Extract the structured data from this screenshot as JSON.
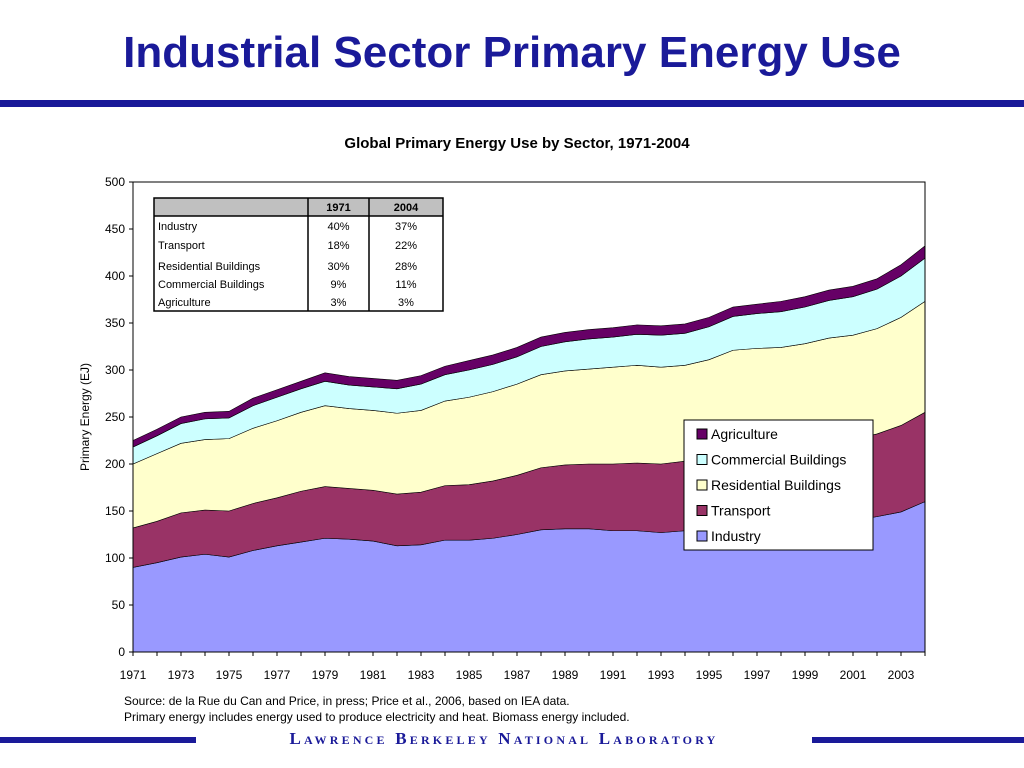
{
  "slide": {
    "title": "Industrial Sector Primary Energy Use",
    "footer": "Lawrence Berkeley National Laboratory",
    "source_line1": "Source: de la Rue du Can and Price, in press; Price et al., 2006, based on IEA data.",
    "source_line2": "Primary energy includes energy used to produce electricity and heat. Biomass energy included."
  },
  "chart_data": {
    "type": "area",
    "stacked": true,
    "title": "Global Primary Energy Use by Sector, 1971-2004",
    "xlabel": "",
    "ylabel": "Primary Energy (EJ)",
    "ylim": [
      0,
      500
    ],
    "yticks": [
      0,
      50,
      100,
      150,
      200,
      250,
      300,
      350,
      400,
      450,
      500
    ],
    "xticks": [
      1971,
      1973,
      1975,
      1977,
      1979,
      1981,
      1983,
      1985,
      1987,
      1989,
      1991,
      1993,
      1995,
      1997,
      1999,
      2001,
      2003
    ],
    "grid": false,
    "legend": "right",
    "x": [
      1971,
      1972,
      1973,
      1974,
      1975,
      1976,
      1977,
      1978,
      1979,
      1980,
      1981,
      1982,
      1983,
      1984,
      1985,
      1986,
      1987,
      1988,
      1989,
      1990,
      1991,
      1992,
      1993,
      1994,
      1995,
      1996,
      1997,
      1998,
      1999,
      2000,
      2001,
      2002,
      2003,
      2004
    ],
    "series": [
      {
        "name": "Industry",
        "color": "#9999ff",
        "values": [
          90,
          95,
          101,
          104,
          101,
          108,
          113,
          117,
          121,
          120,
          118,
          113,
          114,
          119,
          119,
          121,
          125,
          130,
          131,
          131,
          129,
          129,
          127,
          129,
          131,
          133,
          134,
          135,
          137,
          139,
          140,
          144,
          149,
          160
        ]
      },
      {
        "name": "Transport",
        "color": "#993366",
        "values": [
          42,
          44,
          47,
          47,
          49,
          50,
          51,
          54,
          55,
          54,
          54,
          55,
          56,
          58,
          59,
          61,
          63,
          66,
          68,
          69,
          71,
          72,
          73,
          74,
          76,
          78,
          80,
          81,
          83,
          84,
          86,
          88,
          92,
          95
        ]
      },
      {
        "name": "Residential Buildings",
        "color": "#ffffcc",
        "values": [
          68,
          72,
          74,
          75,
          77,
          80,
          82,
          84,
          86,
          85,
          85,
          86,
          87,
          90,
          93,
          95,
          97,
          99,
          100,
          101,
          103,
          104,
          103,
          102,
          104,
          110,
          109,
          108,
          108,
          111,
          111,
          112,
          115,
          118
        ]
      },
      {
        "name": "Commercial Buildings",
        "color": "#ccffff",
        "values": [
          18,
          19,
          21,
          22,
          22,
          24,
          25,
          25,
          26,
          25,
          25,
          26,
          28,
          28,
          29,
          29,
          29,
          30,
          31,
          32,
          32,
          33,
          34,
          34,
          35,
          36,
          37,
          38,
          39,
          40,
          41,
          42,
          44,
          46
        ]
      },
      {
        "name": "Agriculture",
        "color": "#660066",
        "values": [
          7,
          7,
          7,
          7,
          7,
          8,
          8,
          8,
          9,
          9,
          9,
          9,
          9,
          9,
          10,
          10,
          10,
          10,
          10,
          10,
          10,
          10,
          10,
          10,
          10,
          10,
          10,
          11,
          11,
          11,
          11,
          11,
          12,
          13
        ]
      }
    ],
    "share_table": {
      "columns": [
        "",
        "1971",
        "2004"
      ],
      "rows": [
        [
          "Industry",
          "40%",
          "37%"
        ],
        [
          "Transport",
          "18%",
          "22%"
        ],
        [
          "Residential Buildings",
          "30%",
          "28%"
        ],
        [
          "Commercial Buildings",
          "9%",
          "11%"
        ],
        [
          "Agriculture",
          "3%",
          "3%"
        ]
      ]
    }
  }
}
